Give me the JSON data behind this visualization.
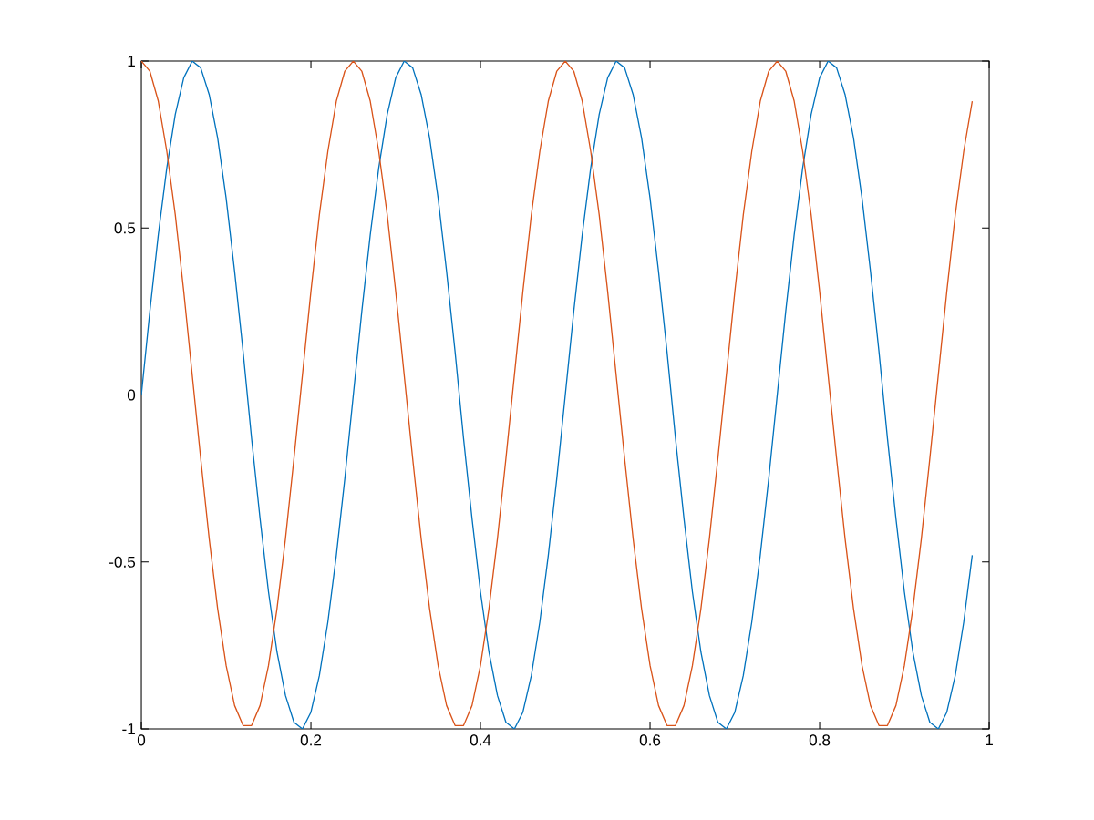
{
  "chart_data": {
    "type": "line",
    "x": [
      0,
      0.01,
      0.02,
      0.03,
      0.04,
      0.05,
      0.06,
      0.07,
      0.08,
      0.09,
      0.1,
      0.11,
      0.12,
      0.13,
      0.14,
      0.15,
      0.16,
      0.17,
      0.18,
      0.19,
      0.2,
      0.21,
      0.22,
      0.23,
      0.24,
      0.25,
      0.26,
      0.27,
      0.28,
      0.29,
      0.3,
      0.31,
      0.32,
      0.33,
      0.34,
      0.35,
      0.36,
      0.37,
      0.38,
      0.39,
      0.4,
      0.41,
      0.42,
      0.43,
      0.44,
      0.45,
      0.46,
      0.47,
      0.48,
      0.49,
      0.5,
      0.51,
      0.52,
      0.53,
      0.54,
      0.55,
      0.56,
      0.57,
      0.58,
      0.59,
      0.6,
      0.61,
      0.62,
      0.63,
      0.64,
      0.65,
      0.66,
      0.67,
      0.68,
      0.69,
      0.7,
      0.71,
      0.72,
      0.73,
      0.74,
      0.75,
      0.76,
      0.77,
      0.78,
      0.79,
      0.8,
      0.81,
      0.82,
      0.83,
      0.84,
      0.85,
      0.86,
      0.87,
      0.88,
      0.89,
      0.9,
      0.91,
      0.92,
      0.93,
      0.94,
      0.95,
      0.96,
      0.97,
      0.98
    ],
    "series": [
      {
        "color": "#0072bd",
        "values": [
          0,
          0.25,
          0.48,
          0.68,
          0.84,
          0.95,
          1,
          0.98,
          0.9,
          0.77,
          0.59,
          0.37,
          0.13,
          -0.13,
          -0.37,
          -0.59,
          -0.77,
          -0.9,
          -0.98,
          -1,
          -0.95,
          -0.84,
          -0.68,
          -0.48,
          -0.25,
          0,
          0.25,
          0.48,
          0.68,
          0.84,
          0.95,
          1,
          0.98,
          0.9,
          0.77,
          0.59,
          0.37,
          0.13,
          -0.13,
          -0.37,
          -0.59,
          -0.77,
          -0.9,
          -0.98,
          -1,
          -0.95,
          -0.84,
          -0.68,
          -0.48,
          -0.25,
          0,
          0.25,
          0.48,
          0.68,
          0.84,
          0.95,
          1,
          0.98,
          0.9,
          0.77,
          0.59,
          0.37,
          0.13,
          -0.13,
          -0.37,
          -0.59,
          -0.77,
          -0.9,
          -0.98,
          -1,
          -0.95,
          -0.84,
          -0.68,
          -0.48,
          -0.25,
          0,
          0.25,
          0.48,
          0.68,
          0.84,
          0.95,
          1,
          0.98,
          0.9,
          0.77,
          0.59,
          0.37,
          0.13,
          -0.13,
          -0.37,
          -0.59,
          -0.77,
          -0.9,
          -0.98,
          -1,
          -0.95,
          -0.84,
          -0.68,
          -0.48
        ]
      },
      {
        "color": "#d95319",
        "values": [
          1,
          0.97,
          0.88,
          0.73,
          0.54,
          0.31,
          0.06,
          -0.19,
          -0.43,
          -0.64,
          -0.81,
          -0.93,
          -0.99,
          -0.99,
          -0.93,
          -0.81,
          -0.64,
          -0.43,
          -0.19,
          0.06,
          0.31,
          0.54,
          0.73,
          0.88,
          0.97,
          1,
          0.97,
          0.88,
          0.73,
          0.54,
          0.31,
          0.06,
          -0.19,
          -0.43,
          -0.64,
          -0.81,
          -0.93,
          -0.99,
          -0.99,
          -0.93,
          -0.81,
          -0.64,
          -0.43,
          -0.19,
          0.06,
          0.31,
          0.54,
          0.73,
          0.88,
          0.97,
          1,
          0.97,
          0.88,
          0.73,
          0.54,
          0.31,
          0.06,
          -0.19,
          -0.43,
          -0.64,
          -0.81,
          -0.93,
          -0.99,
          -0.99,
          -0.93,
          -0.81,
          -0.64,
          -0.43,
          -0.19,
          0.06,
          0.31,
          0.54,
          0.73,
          0.88,
          0.97,
          1,
          0.97,
          0.88,
          0.73,
          0.54,
          0.31,
          0.06,
          -0.19,
          -0.43,
          -0.64,
          -0.81,
          -0.93,
          -0.99,
          -0.99,
          -0.93,
          -0.81,
          -0.64,
          -0.43,
          -0.19,
          0.06,
          0.31,
          0.54,
          0.73,
          0.88
        ]
      }
    ],
    "xlim": [
      0,
      1
    ],
    "ylim": [
      -1,
      1
    ],
    "xticks": [
      0,
      0.2,
      0.4,
      0.6,
      0.8,
      1
    ],
    "yticks": [
      -1,
      -0.5,
      0,
      0.5,
      1
    ]
  }
}
